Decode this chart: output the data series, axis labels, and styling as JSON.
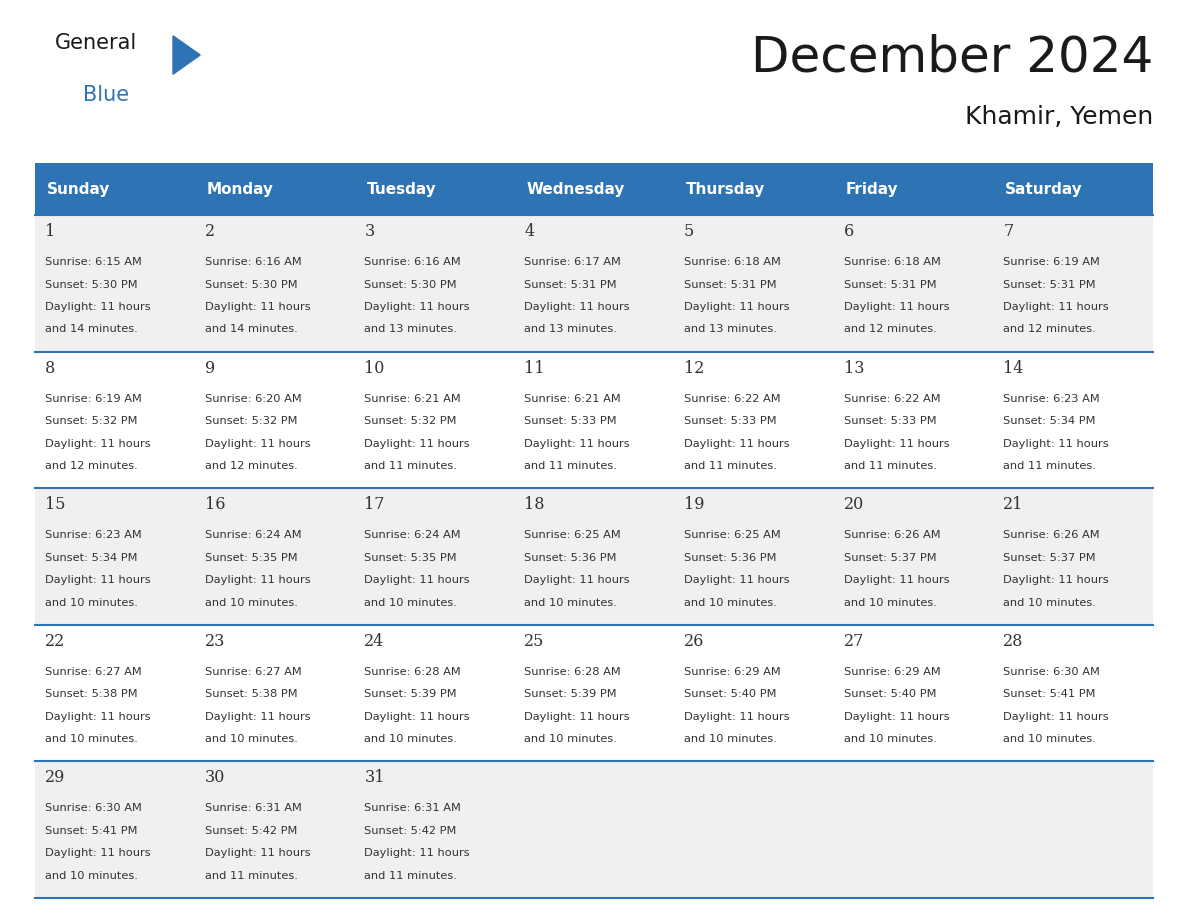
{
  "title": "December 2024",
  "subtitle": "Khamir, Yemen",
  "days_of_week": [
    "Sunday",
    "Monday",
    "Tuesday",
    "Wednesday",
    "Thursday",
    "Friday",
    "Saturday"
  ],
  "header_bg_color": "#2E74B5",
  "header_text_color": "#FFFFFF",
  "cell_bg_even": "#F0F0F0",
  "cell_bg_odd": "#FFFFFF",
  "divider_color": "#2E74B5",
  "text_color": "#333333",
  "title_color": "#1a1a1a",
  "logo_general_color": "#1a1a1a",
  "logo_blue_color": "#2E74B5",
  "logo_triangle_color": "#2E74B5",
  "calendar_data": [
    [
      {
        "day": 1,
        "sunrise": "6:15 AM",
        "sunset": "5:30 PM",
        "daylight": "11 hours\nand 14 minutes."
      },
      {
        "day": 2,
        "sunrise": "6:16 AM",
        "sunset": "5:30 PM",
        "daylight": "11 hours\nand 14 minutes."
      },
      {
        "day": 3,
        "sunrise": "6:16 AM",
        "sunset": "5:30 PM",
        "daylight": "11 hours\nand 13 minutes."
      },
      {
        "day": 4,
        "sunrise": "6:17 AM",
        "sunset": "5:31 PM",
        "daylight": "11 hours\nand 13 minutes."
      },
      {
        "day": 5,
        "sunrise": "6:18 AM",
        "sunset": "5:31 PM",
        "daylight": "11 hours\nand 13 minutes."
      },
      {
        "day": 6,
        "sunrise": "6:18 AM",
        "sunset": "5:31 PM",
        "daylight": "11 hours\nand 12 minutes."
      },
      {
        "day": 7,
        "sunrise": "6:19 AM",
        "sunset": "5:31 PM",
        "daylight": "11 hours\nand 12 minutes."
      }
    ],
    [
      {
        "day": 8,
        "sunrise": "6:19 AM",
        "sunset": "5:32 PM",
        "daylight": "11 hours\nand 12 minutes."
      },
      {
        "day": 9,
        "sunrise": "6:20 AM",
        "sunset": "5:32 PM",
        "daylight": "11 hours\nand 12 minutes."
      },
      {
        "day": 10,
        "sunrise": "6:21 AM",
        "sunset": "5:32 PM",
        "daylight": "11 hours\nand 11 minutes."
      },
      {
        "day": 11,
        "sunrise": "6:21 AM",
        "sunset": "5:33 PM",
        "daylight": "11 hours\nand 11 minutes."
      },
      {
        "day": 12,
        "sunrise": "6:22 AM",
        "sunset": "5:33 PM",
        "daylight": "11 hours\nand 11 minutes."
      },
      {
        "day": 13,
        "sunrise": "6:22 AM",
        "sunset": "5:33 PM",
        "daylight": "11 hours\nand 11 minutes."
      },
      {
        "day": 14,
        "sunrise": "6:23 AM",
        "sunset": "5:34 PM",
        "daylight": "11 hours\nand 11 minutes."
      }
    ],
    [
      {
        "day": 15,
        "sunrise": "6:23 AM",
        "sunset": "5:34 PM",
        "daylight": "11 hours\nand 10 minutes."
      },
      {
        "day": 16,
        "sunrise": "6:24 AM",
        "sunset": "5:35 PM",
        "daylight": "11 hours\nand 10 minutes."
      },
      {
        "day": 17,
        "sunrise": "6:24 AM",
        "sunset": "5:35 PM",
        "daylight": "11 hours\nand 10 minutes."
      },
      {
        "day": 18,
        "sunrise": "6:25 AM",
        "sunset": "5:36 PM",
        "daylight": "11 hours\nand 10 minutes."
      },
      {
        "day": 19,
        "sunrise": "6:25 AM",
        "sunset": "5:36 PM",
        "daylight": "11 hours\nand 10 minutes."
      },
      {
        "day": 20,
        "sunrise": "6:26 AM",
        "sunset": "5:37 PM",
        "daylight": "11 hours\nand 10 minutes."
      },
      {
        "day": 21,
        "sunrise": "6:26 AM",
        "sunset": "5:37 PM",
        "daylight": "11 hours\nand 10 minutes."
      }
    ],
    [
      {
        "day": 22,
        "sunrise": "6:27 AM",
        "sunset": "5:38 PM",
        "daylight": "11 hours\nand 10 minutes."
      },
      {
        "day": 23,
        "sunrise": "6:27 AM",
        "sunset": "5:38 PM",
        "daylight": "11 hours\nand 10 minutes."
      },
      {
        "day": 24,
        "sunrise": "6:28 AM",
        "sunset": "5:39 PM",
        "daylight": "11 hours\nand 10 minutes."
      },
      {
        "day": 25,
        "sunrise": "6:28 AM",
        "sunset": "5:39 PM",
        "daylight": "11 hours\nand 10 minutes."
      },
      {
        "day": 26,
        "sunrise": "6:29 AM",
        "sunset": "5:40 PM",
        "daylight": "11 hours\nand 10 minutes."
      },
      {
        "day": 27,
        "sunrise": "6:29 AM",
        "sunset": "5:40 PM",
        "daylight": "11 hours\nand 10 minutes."
      },
      {
        "day": 28,
        "sunrise": "6:30 AM",
        "sunset": "5:41 PM",
        "daylight": "11 hours\nand 10 minutes."
      }
    ],
    [
      {
        "day": 29,
        "sunrise": "6:30 AM",
        "sunset": "5:41 PM",
        "daylight": "11 hours\nand 10 minutes."
      },
      {
        "day": 30,
        "sunrise": "6:31 AM",
        "sunset": "5:42 PM",
        "daylight": "11 hours\nand 11 minutes."
      },
      {
        "day": 31,
        "sunrise": "6:31 AM",
        "sunset": "5:42 PM",
        "daylight": "11 hours\nand 11 minutes."
      },
      null,
      null,
      null,
      null
    ]
  ]
}
